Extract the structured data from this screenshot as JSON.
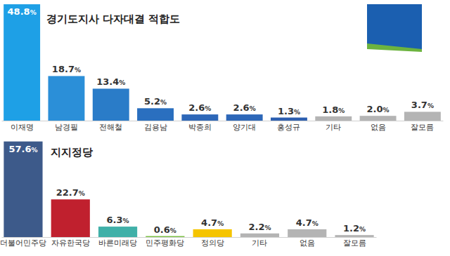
{
  "chart_data": [
    {
      "type": "bar",
      "title": "경기도지사 다자대결 적합도",
      "categories": [
        "이재명",
        "남경필",
        "전해철",
        "김용남",
        "박종희",
        "양기대",
        "홍성규",
        "기타",
        "없음",
        "잘모름"
      ],
      "values": [
        48.8,
        18.7,
        13.4,
        5.2,
        2.6,
        2.6,
        1.3,
        1.8,
        2.0,
        3.7
      ],
      "value_labels": [
        "48.8%",
        "18.7%",
        "13.4%",
        "5.2%",
        "2.6%",
        "2.6%",
        "1.3%",
        "1.8%",
        "2.0%",
        "3.7%"
      ],
      "colors": [
        "#1ea0e6",
        "#2b8fd8",
        "#2a7cc8",
        "#2a6fbf",
        "#2d67b8",
        "#2d67b8",
        "#2d5fb0",
        "#b4b4b4",
        "#b4b4b4",
        "#b4b4b4"
      ],
      "ylim": [
        0,
        50
      ],
      "data_labels": true,
      "tick_labels": "x"
    },
    {
      "type": "bar",
      "title": "지지정당",
      "categories": [
        "더불어민주당",
        "자유한국당",
        "바른미래당",
        "민주평화당",
        "정의당",
        "기타",
        "없음",
        "잘모름"
      ],
      "values": [
        57.6,
        22.7,
        6.3,
        0.6,
        4.7,
        2.2,
        4.7,
        1.2
      ],
      "value_labels": [
        "57.6%",
        "22.7%",
        "6.3%",
        "0.6%",
        "4.7%",
        "2.2%",
        "4.7%",
        "1.2%"
      ],
      "colors": [
        "#3d5a8a",
        "#c0202e",
        "#40b0a8",
        "#7cc143",
        "#f5c400",
        "#b4b4b4",
        "#b4b4b4",
        "#b4b4b4"
      ],
      "ylim": [
        0,
        60
      ],
      "data_labels": true,
      "tick_labels": "x"
    }
  ]
}
